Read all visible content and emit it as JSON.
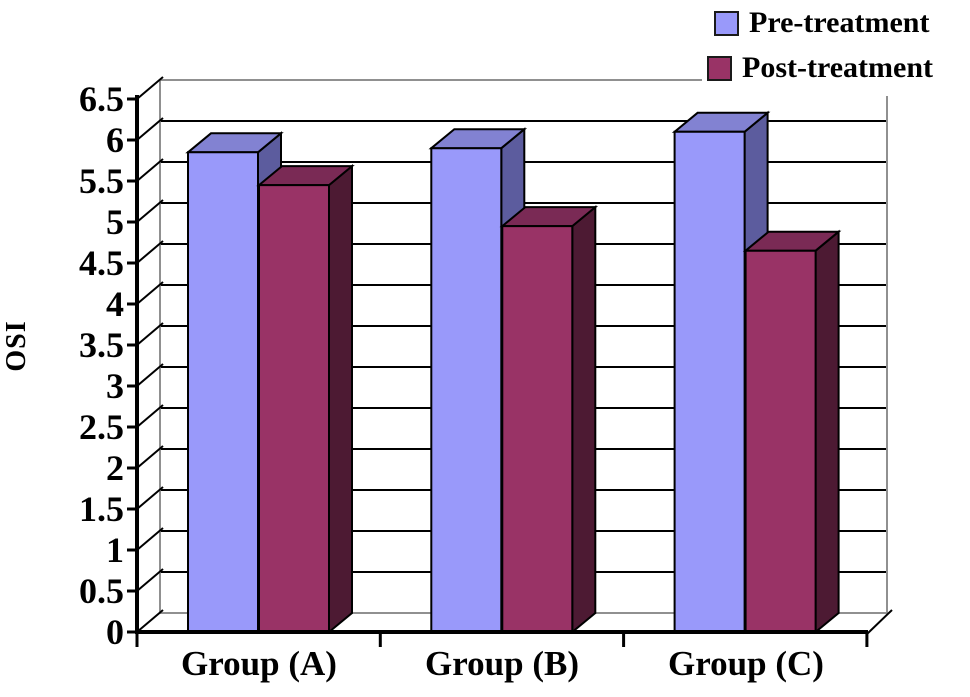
{
  "chart_data": {
    "type": "bar",
    "variant": "3d-column",
    "title": "",
    "xlabel": "",
    "ylabel": "OSI",
    "ylim": [
      0,
      6.5
    ],
    "ytick_step": 0.5,
    "grid": true,
    "legend_position": "top-right",
    "categories": [
      "Group (A)",
      "Group (B)",
      "Group (C)"
    ],
    "series": [
      {
        "name": "Pre-treatment",
        "values": [
          5.85,
          5.9,
          6.1
        ],
        "color_front": "#9999FA",
        "color_top": "#8282D2",
        "color_side": "#5C5C9E"
      },
      {
        "name": "Post-treatment",
        "values": [
          5.45,
          4.95,
          4.65
        ],
        "color_front": "#993366",
        "color_top": "#7A2A55",
        "color_side": "#4D1A33"
      }
    ],
    "colors": {
      "gridline": "#000000",
      "axis": "#000000",
      "wall_edge": "#909090",
      "background": "#FFFFFF",
      "text": "#000000"
    }
  }
}
